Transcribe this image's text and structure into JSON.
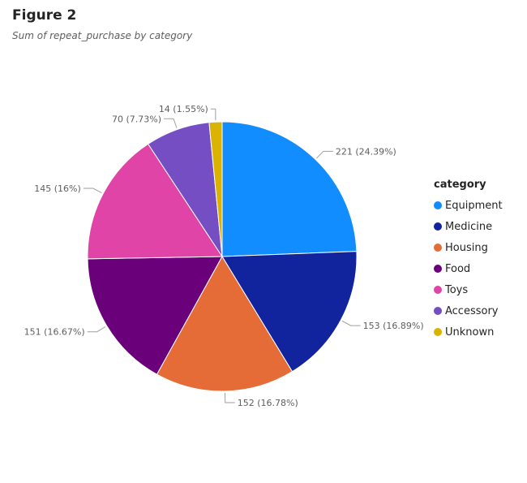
{
  "header": {
    "title": "Figure 2",
    "subtitle": "Sum of repeat_purchase by category"
  },
  "chart_data": {
    "type": "pie",
    "measure": "repeat_purchase",
    "legend_title": "category",
    "legend_position": "right",
    "categories": [
      "Equipment",
      "Medicine",
      "Housing",
      "Food",
      "Toys",
      "Accessory",
      "Unknown"
    ],
    "values": [
      221,
      153,
      152,
      151,
      145,
      70,
      14
    ],
    "percentages": [
      "24.39%",
      "16.89%",
      "16.78%",
      "16.67%",
      "16%",
      "7.73%",
      "1.55%"
    ],
    "data_labels": [
      "221 (24.39%)",
      "153 (16.89%)",
      "152 (16.78%)",
      "151 (16.67%)",
      "145 (16%)",
      "70 (7.73%)",
      "14 (1.55%)"
    ],
    "colors": [
      "#118DFF",
      "#12239E",
      "#E66C37",
      "#6B007B",
      "#E044A7",
      "#744EC2",
      "#D9B300"
    ],
    "start_angle": "12 o'clock",
    "direction": "clockwise"
  }
}
